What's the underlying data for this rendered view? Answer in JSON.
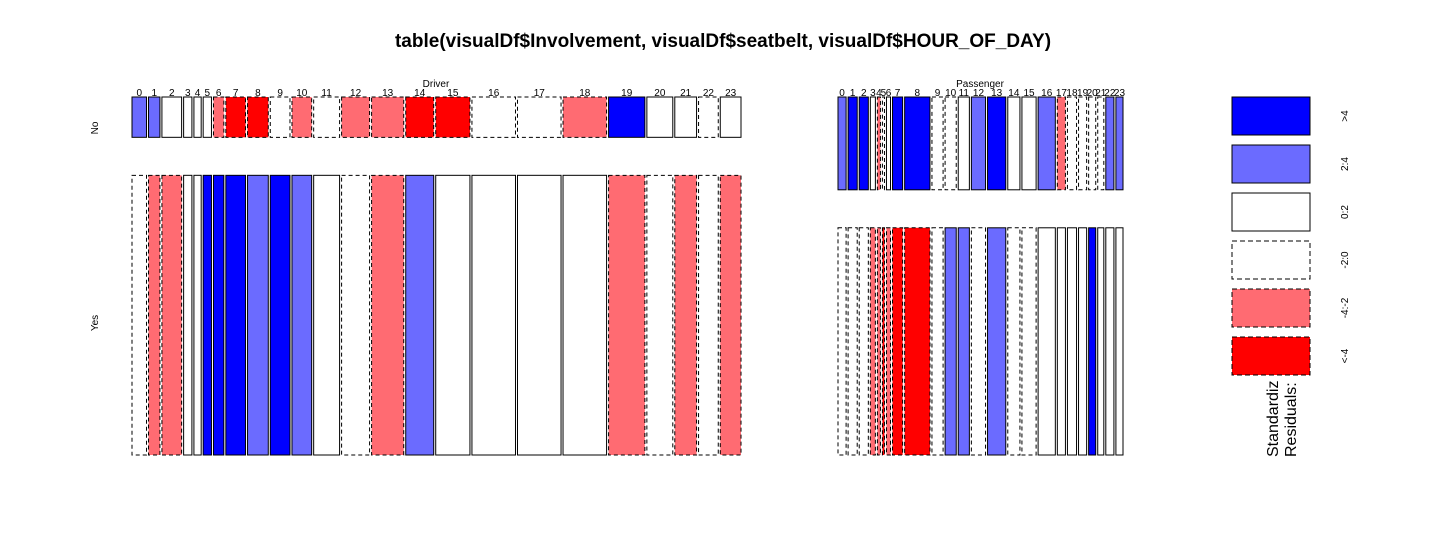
{
  "chart_data": {
    "type": "mosaic",
    "title": "table(visualDf$Involvement, visualDf$seatbelt, visualDf$HOUR_OF_DAY)",
    "row_variable_levels": [
      "No",
      "Yes"
    ],
    "hours": [
      "0",
      "1",
      "2",
      "3",
      "4",
      "5",
      "6",
      "7",
      "8",
      "9",
      "10",
      "11",
      "12",
      "13",
      "14",
      "15",
      "16",
      "17",
      "18",
      "19",
      "20",
      "21",
      "22",
      "23"
    ],
    "panels": [
      {
        "name": "Driver",
        "no_fraction": 0.126,
        "hour_widths": [
          14,
          11,
          19,
          8,
          7,
          8,
          10,
          19,
          20,
          19,
          19,
          25,
          27,
          31,
          27,
          33,
          42,
          42,
          42,
          35,
          25,
          21,
          19,
          20
        ],
        "no_residual_class": [
          "2:4",
          "2:4",
          "0:2",
          "0:2",
          "0:2",
          "0:2",
          "-4:-2",
          "<-4",
          "<-4",
          "-2:0",
          "-4:-2",
          "-2:0",
          "-4:-2",
          "-4:-2",
          "<-4",
          "<-4",
          "-2:0",
          "-2:0",
          "-4:-2",
          ">4",
          "0:2",
          "0:2",
          "-2:0",
          "0:2"
        ],
        "yes_residual_class": [
          "-2:0",
          "-4:-2",
          "-4:-2",
          "0:2",
          "0:2",
          ">4",
          ">4",
          ">4",
          "2:4",
          ">4",
          "2:4",
          "0:2",
          "-2:0",
          "-4:-2",
          "2:4",
          "0:2",
          "0:2",
          "0:2",
          "0:2",
          "-4:-2",
          "-2:0",
          "-4:-2",
          "-2:0",
          "-4:-2"
        ]
      },
      {
        "name": "Passenger",
        "no_fraction": 0.29,
        "hour_widths": [
          8,
          9,
          9,
          5,
          3,
          2,
          4,
          10,
          25,
          11,
          11,
          11,
          14,
          18,
          12,
          14,
          17,
          8,
          9,
          8,
          7,
          6,
          8,
          7
        ],
        "no_residual_class": [
          "2:4",
          ">4",
          ">4",
          "0:2",
          "-4:-2",
          "-2:0",
          "0:2",
          ">4",
          ">4",
          "-2:0",
          "-2:0",
          "0:2",
          "2:4",
          ">4",
          "0:2",
          "0:2",
          "2:4",
          "-4:-2",
          "-2:0",
          "-2:0",
          "-2:0",
          "-2:0",
          "2:4",
          "2:4"
        ],
        "yes_residual_class": [
          "-2:0",
          "-2:0",
          "-2:0",
          "-4:-2",
          "-4:-2",
          "<-4",
          "-4:-2",
          "<-4",
          "<-4",
          "-2:0",
          "2:4",
          "2:4",
          "-2:0",
          "2:4",
          "-2:0",
          "-2:0",
          "0:2",
          "0:2",
          "0:2",
          "0:2",
          ">4",
          "0:2",
          "0:2",
          "0:2"
        ]
      }
    ],
    "legend": {
      "title_lines": [
        "Standardiz",
        "Residuals:"
      ],
      "entries": [
        {
          "label": ">4",
          "color": "#0000ff",
          "dashed": false
        },
        {
          "label": "2:4",
          "color": "#6b6bff",
          "dashed": false
        },
        {
          "label": "0:2",
          "color": "#ffffff",
          "dashed": false
        },
        {
          "label": "-2:0",
          "color": "#ffffff",
          "dashed": true
        },
        {
          "label": "-4:-2",
          "color": "#ff6b72",
          "dashed": true
        },
        {
          "label": "<-4",
          "color": "#ff0000",
          "dashed": true
        }
      ]
    }
  }
}
